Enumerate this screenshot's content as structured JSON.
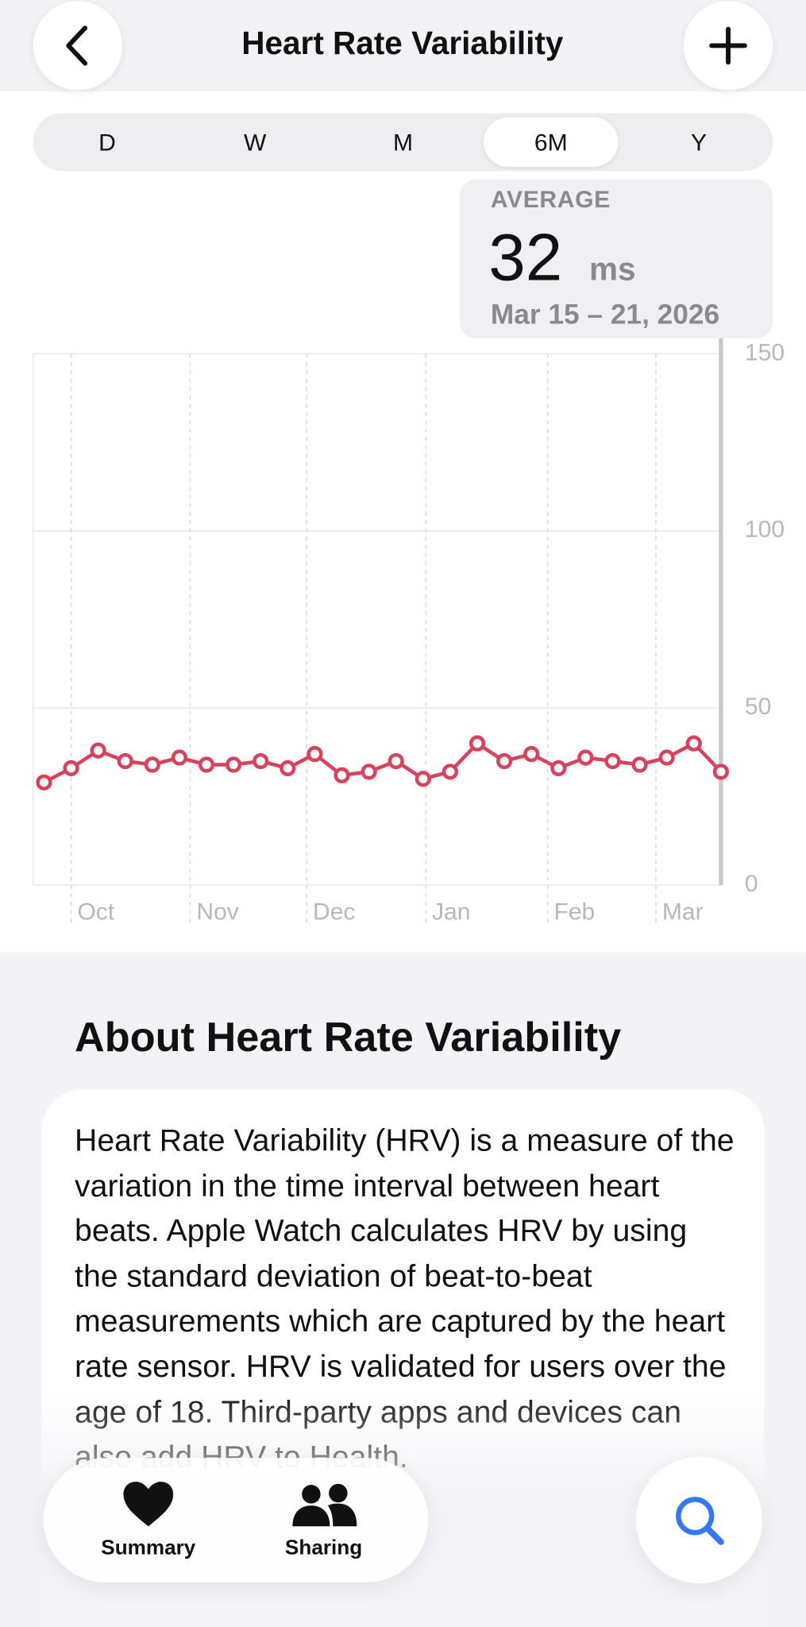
{
  "header": {
    "title": "Heart Rate Variability"
  },
  "segments": {
    "options": [
      "D",
      "W",
      "M",
      "6M",
      "Y"
    ],
    "selected_index": 3
  },
  "summary": {
    "label": "AVERAGE",
    "value": 32,
    "unit": "ms",
    "date_range": "Mar 15 – 21, 2026"
  },
  "chart_data": {
    "type": "line",
    "x": [
      0,
      1,
      2,
      3,
      4,
      5,
      6,
      7,
      8,
      9,
      10,
      11,
      12,
      13,
      14,
      15,
      16,
      17,
      18,
      19,
      20,
      21,
      22,
      23,
      24,
      25
    ],
    "series": [
      {
        "color": "#d7435d",
        "values": [
          29,
          33,
          38,
          35,
          34,
          36,
          34,
          34,
          35,
          33,
          37,
          31,
          32,
          35,
          30,
          32,
          40,
          35,
          37,
          33,
          36,
          35,
          34,
          36,
          40,
          32
        ]
      }
    ],
    "xlim": [
      -0.4,
      25
    ],
    "xticks": [
      {
        "value": 1.0,
        "label": "Oct"
      },
      {
        "value": 5.4,
        "label": "Nov"
      },
      {
        "value": 9.7,
        "label": "Dec"
      },
      {
        "value": 14.1,
        "label": "Jan"
      },
      {
        "value": 18.6,
        "label": "Feb"
      },
      {
        "value": 22.6,
        "label": "Mar"
      }
    ],
    "ylim": [
      0,
      150
    ],
    "yticks": [
      0,
      50,
      100,
      150
    ],
    "grid": true
  },
  "about": {
    "title": "About Heart Rate Variability",
    "body": "Heart Rate Variability (HRV) is a measure of the variation in the time interval between heart beats. Apple Watch calculates HRV by using the standard deviation of beat-to-beat measurements which are captured by the heart rate sensor. HRV is validated for users over the age of 18. Third-party apps and devices can also add HRV to Health."
  },
  "tab_bar": {
    "items": [
      "Summary",
      "Sharing"
    ]
  }
}
